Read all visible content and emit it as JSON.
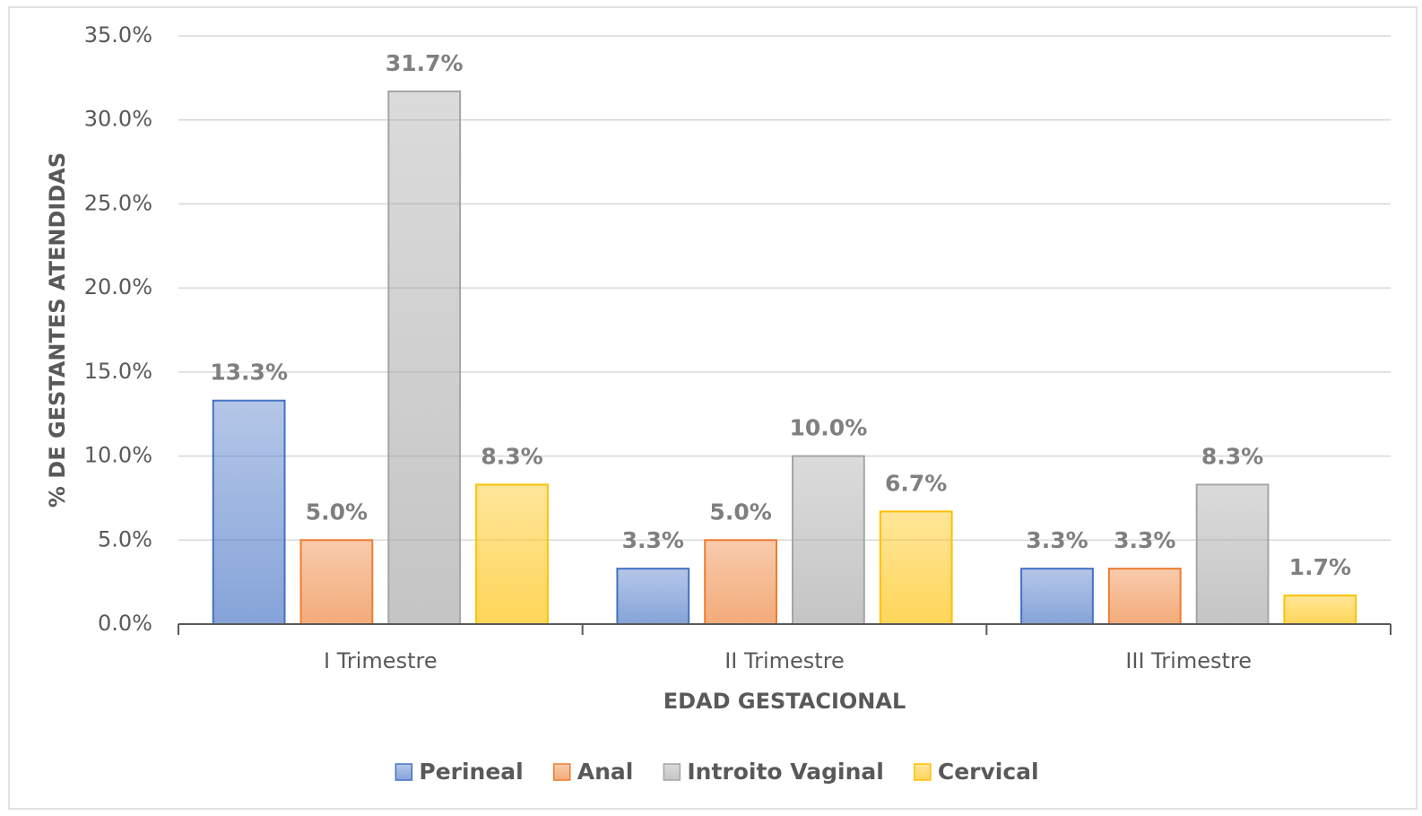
{
  "chart_data": {
    "type": "bar",
    "y_label": "% DE GESTANTES ATENDIDAS",
    "x_label": "EDAD GESTACIONAL",
    "categories": [
      "I Trimestre",
      "II Trimestre",
      "III Trimestre"
    ],
    "series": [
      {
        "name": "Perineal",
        "color": "#4472c4",
        "values": [
          13.3,
          3.3,
          3.3
        ],
        "value_labels": [
          "13.3%",
          "3.3%",
          "3.3%"
        ]
      },
      {
        "name": "Anal",
        "color": "#ed7d31",
        "values": [
          5.0,
          5.0,
          3.3
        ],
        "value_labels": [
          "5.0%",
          "5.0%",
          "3.3%"
        ]
      },
      {
        "name": "Introito Vaginal",
        "color": "#a5a5a5",
        "values": [
          31.7,
          10.0,
          8.3
        ],
        "value_labels": [
          "31.7%",
          "10.0%",
          "8.3%"
        ]
      },
      {
        "name": "Cervical",
        "color": "#ffc000",
        "values": [
          8.3,
          6.7,
          1.7
        ],
        "value_labels": [
          "8.3%",
          "6.7%",
          "1.7%"
        ]
      }
    ],
    "ylim": [
      0,
      35
    ],
    "yticks": [
      {
        "value": 0,
        "label": "0.0%"
      },
      {
        "value": 5,
        "label": "5.0%"
      },
      {
        "value": 10,
        "label": "10.0%"
      },
      {
        "value": 15,
        "label": "15.0%"
      },
      {
        "value": 20,
        "label": "20.0%"
      },
      {
        "value": 25,
        "label": "25.0%"
      },
      {
        "value": 30,
        "label": "30.0%"
      },
      {
        "value": 35,
        "label": "35.0%"
      }
    ],
    "grid": true,
    "legend": "bottom"
  }
}
